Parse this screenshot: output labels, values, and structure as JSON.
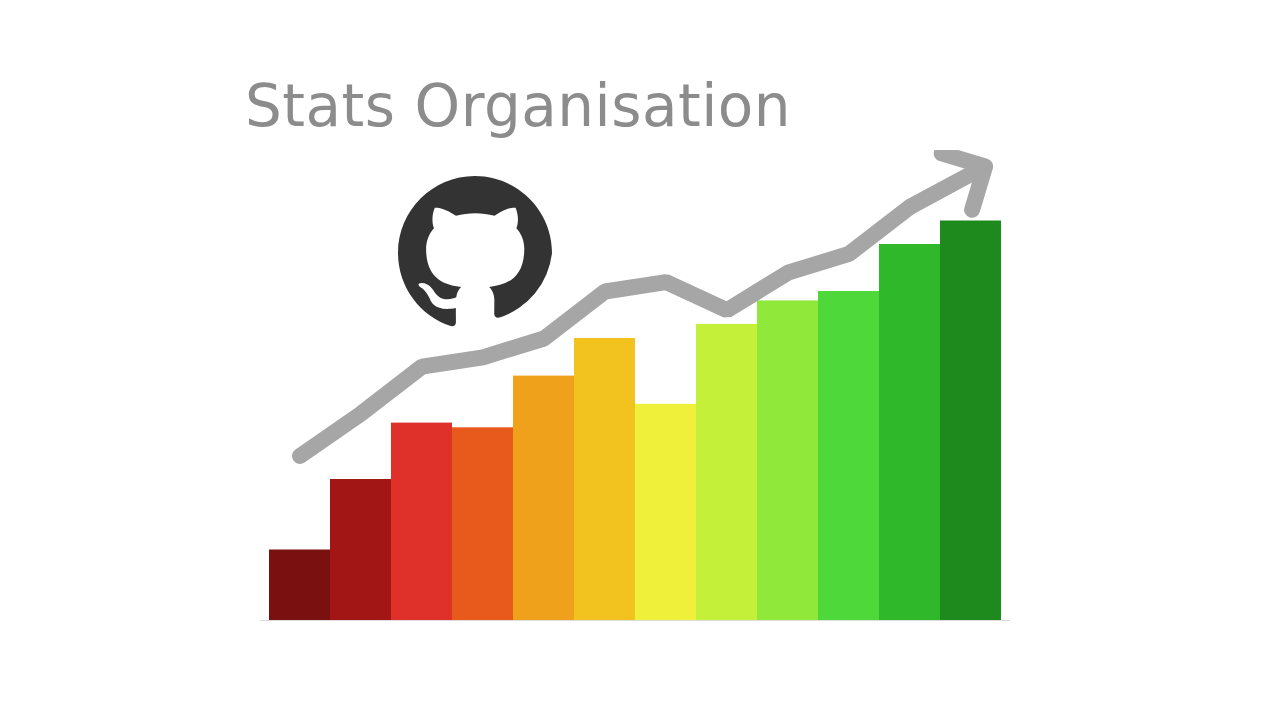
{
  "chart_data": {
    "type": "bar",
    "title": "Stats Organisation",
    "categories": [
      null,
      null,
      null,
      null,
      null,
      null,
      null,
      null,
      null,
      null,
      null,
      null
    ],
    "ylim": [
      0,
      100
    ],
    "tick_labels": false,
    "grid": false,
    "series": [
      {
        "type": "bar",
        "colors": [
          "#7a1010",
          "#a31616",
          "#e0302a",
          "#e85a1c",
          "#f0a11c",
          "#f2c21e",
          "#eef03a",
          "#c4f03a",
          "#8fe83a",
          "#4fd83a",
          "#2fb82a",
          "#1e8a1e"
        ],
        "values": [
          15,
          30,
          42,
          41,
          52,
          60,
          46,
          63,
          68,
          70,
          80,
          85
        ]
      },
      {
        "type": "line",
        "color": "#a6a6a6",
        "marker": "arrow",
        "values": [
          35,
          44,
          54,
          56,
          60,
          70,
          72,
          66,
          74,
          78,
          88,
          95
        ]
      }
    ]
  }
}
